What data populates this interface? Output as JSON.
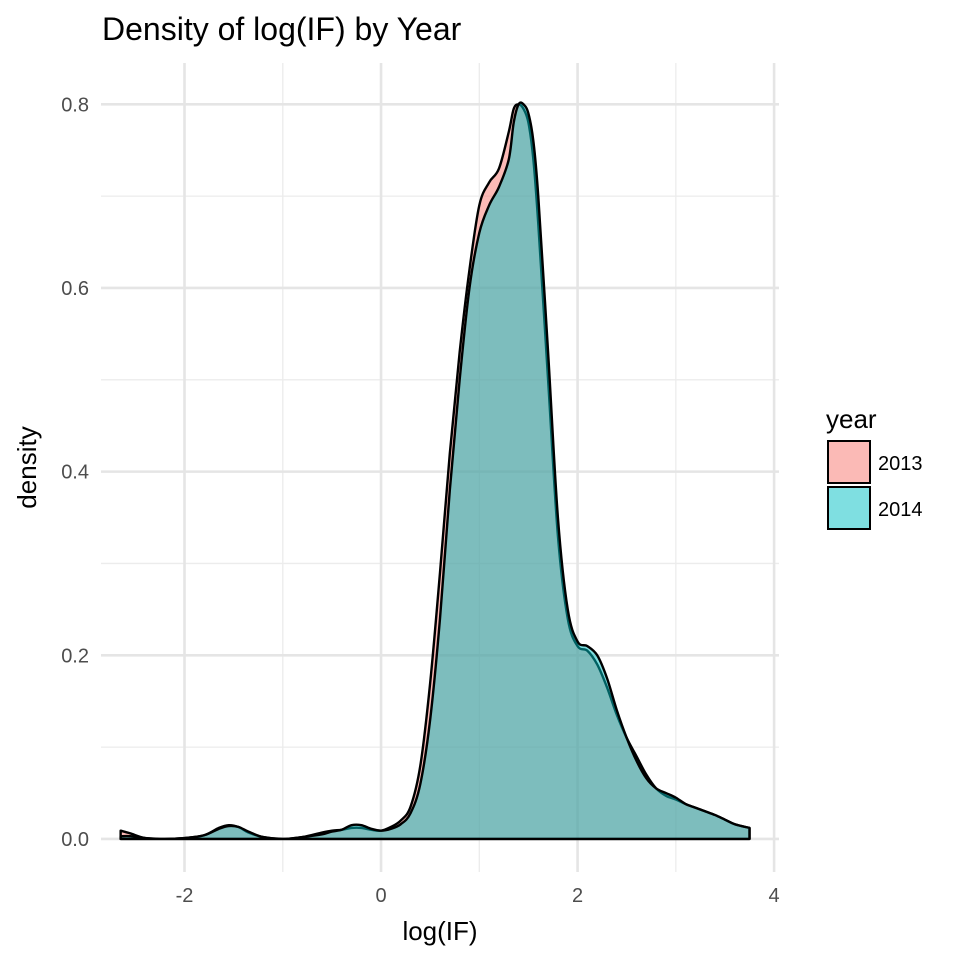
{
  "chart_data": {
    "type": "area",
    "title": "Density of log(IF) by Year",
    "xlabel": "log(IF)",
    "ylabel": "density",
    "xlim": [
      -2.85,
      4.05
    ],
    "ylim": [
      -0.036,
      0.845
    ],
    "x_ticks": [
      -2,
      0,
      2,
      4
    ],
    "x_tick_labels": [
      "-2",
      "0",
      "2",
      "4"
    ],
    "y_ticks": [
      0.0,
      0.2,
      0.4,
      0.6,
      0.8
    ],
    "y_tick_labels": [
      "0.0",
      "0.2",
      "0.4",
      "0.6",
      "0.8"
    ],
    "grid": true,
    "legend": {
      "title": "year",
      "position": "right"
    },
    "fill_opacity": 0.5,
    "series": [
      {
        "name": "2013",
        "color": "#f8766d",
        "x": [
          -2.65,
          -2.55,
          -2.4,
          -2.2,
          -2.0,
          -1.8,
          -1.65,
          -1.55,
          -1.45,
          -1.35,
          -1.2,
          -1.0,
          -0.8,
          -0.6,
          -0.5,
          -0.4,
          -0.3,
          -0.2,
          -0.1,
          0.0,
          0.1,
          0.2,
          0.3,
          0.4,
          0.5,
          0.6,
          0.7,
          0.8,
          0.9,
          1.0,
          1.1,
          1.2,
          1.3,
          1.35,
          1.4,
          1.45,
          1.5,
          1.55,
          1.6,
          1.7,
          1.8,
          1.9,
          2.0,
          2.1,
          2.2,
          2.3,
          2.4,
          2.5,
          2.6,
          2.7,
          2.8,
          2.9,
          3.0,
          3.1,
          3.2,
          3.3,
          3.4,
          3.5,
          3.6,
          3.75
        ],
        "values": [
          0.009,
          0.006,
          0.001,
          0.0,
          0.001,
          0.004,
          0.012,
          0.015,
          0.013,
          0.007,
          0.002,
          0.0,
          0.002,
          0.007,
          0.009,
          0.01,
          0.012,
          0.012,
          0.01,
          0.009,
          0.013,
          0.02,
          0.035,
          0.08,
          0.17,
          0.29,
          0.42,
          0.53,
          0.62,
          0.69,
          0.715,
          0.73,
          0.77,
          0.795,
          0.8,
          0.795,
          0.78,
          0.74,
          0.67,
          0.5,
          0.33,
          0.24,
          0.21,
          0.205,
          0.19,
          0.165,
          0.135,
          0.11,
          0.09,
          0.07,
          0.055,
          0.047,
          0.043,
          0.038,
          0.034,
          0.03,
          0.026,
          0.021,
          0.016,
          0.012
        ]
      },
      {
        "name": "2014",
        "color": "#00bfc4",
        "x": [
          -2.65,
          -2.55,
          -2.4,
          -2.2,
          -2.0,
          -1.8,
          -1.65,
          -1.55,
          -1.45,
          -1.35,
          -1.2,
          -1.0,
          -0.8,
          -0.6,
          -0.5,
          -0.4,
          -0.3,
          -0.2,
          -0.1,
          0.0,
          0.1,
          0.2,
          0.3,
          0.4,
          0.5,
          0.6,
          0.7,
          0.8,
          0.9,
          1.0,
          1.1,
          1.2,
          1.3,
          1.35,
          1.4,
          1.45,
          1.5,
          1.55,
          1.6,
          1.7,
          1.8,
          1.9,
          2.0,
          2.1,
          2.2,
          2.3,
          2.4,
          2.5,
          2.6,
          2.7,
          2.8,
          2.9,
          3.0,
          3.1,
          3.2,
          3.3,
          3.4,
          3.5,
          3.6,
          3.75
        ],
        "values": [
          0.003,
          0.003,
          0.001,
          0.0,
          0.001,
          0.004,
          0.011,
          0.014,
          0.013,
          0.008,
          0.002,
          0.0,
          0.002,
          0.005,
          0.008,
          0.01,
          0.015,
          0.015,
          0.011,
          0.009,
          0.011,
          0.016,
          0.028,
          0.06,
          0.13,
          0.24,
          0.38,
          0.5,
          0.6,
          0.66,
          0.69,
          0.71,
          0.74,
          0.78,
          0.8,
          0.8,
          0.79,
          0.76,
          0.7,
          0.53,
          0.35,
          0.25,
          0.215,
          0.21,
          0.2,
          0.175,
          0.14,
          0.11,
          0.085,
          0.066,
          0.055,
          0.05,
          0.045,
          0.038,
          0.034,
          0.03,
          0.026,
          0.021,
          0.016,
          0.012
        ]
      }
    ]
  }
}
